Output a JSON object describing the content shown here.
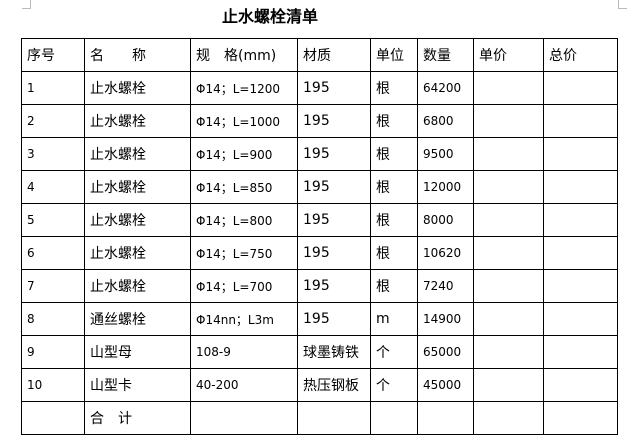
{
  "title": "止水螺栓清单",
  "headers": [
    "序号",
    "名　　称",
    "规　格(mm)",
    "材质",
    "单位",
    "数量",
    "单价",
    "总价"
  ],
  "rows": [
    [
      "1",
      "止水螺栓",
      "Φ14；L=1200",
      "195",
      "根",
      "64200",
      "",
      ""
    ],
    [
      "2",
      "止水螺栓",
      "Φ14；L=1000",
      "195",
      "根",
      "6800",
      "",
      ""
    ],
    [
      "3",
      "止水螺栓",
      "Φ14；L=900",
      "195",
      "根",
      "9500",
      "",
      ""
    ],
    [
      "4",
      "止水螺栓",
      "Φ14；L=850",
      "195",
      "根",
      "12000",
      "",
      ""
    ],
    [
      "5",
      "止水螺栓",
      "Φ14；L=800",
      "195",
      "根",
      "8000",
      "",
      ""
    ],
    [
      "6",
      "止水螺栓",
      "Φ14；L=750",
      "195",
      "根",
      "10620",
      "",
      ""
    ],
    [
      "7",
      "止水螺栓",
      "Φ14；L=700",
      "195",
      "根",
      "7240",
      "",
      ""
    ],
    [
      "8",
      "通丝螺栓",
      "Φ14nn；L3m",
      "195",
      "m",
      "14900",
      "",
      ""
    ],
    [
      "9",
      "山型母",
      "108-9",
      "球墨铸铁",
      "个",
      "65000",
      "",
      ""
    ],
    [
      "10",
      "山型卡",
      "40-200",
      "热压钢板",
      "个",
      "45000",
      "",
      ""
    ],
    [
      "",
      "合　计",
      "",
      "",
      "",
      "",
      "",
      ""
    ]
  ]
}
